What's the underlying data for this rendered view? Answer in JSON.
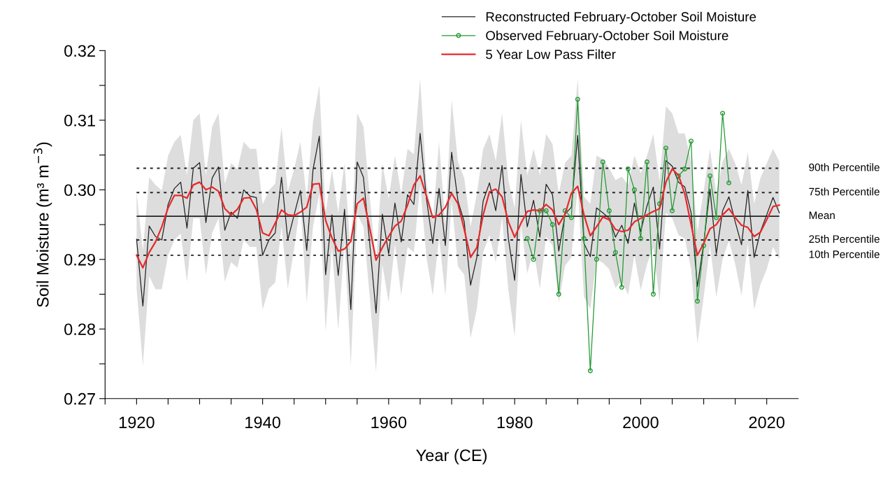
{
  "chart_data": {
    "type": "line",
    "xlabel": "Year (CE)",
    "ylabel": "Soil Moisture (m³ m$^{−3}$)",
    "xlim": [
      1915,
      2025
    ],
    "xticks": [
      {
        "value": 1915,
        "label": null
      },
      1920,
      {
        "value": 1925,
        "label": null
      },
      {
        "value": 1930,
        "label": null
      },
      {
        "value": 1935,
        "label": null
      },
      1940,
      {
        "value": 1945,
        "label": null
      },
      {
        "value": 1950,
        "label": null
      },
      {
        "value": 1955,
        "label": null
      },
      1960,
      {
        "value": 1965,
        "label": null
      },
      {
        "value": 1970,
        "label": null
      },
      {
        "value": 1975,
        "label": null
      },
      1980,
      {
        "value": 1985,
        "label": null
      },
      {
        "value": 1990,
        "label": null
      },
      {
        "value": 1995,
        "label": null
      },
      2000,
      {
        "value": 2005,
        "label": null
      },
      {
        "value": 2010,
        "label": null
      },
      {
        "value": 2015,
        "label": null
      },
      2020
    ],
    "ylim": [
      0.27,
      0.32
    ],
    "yticks": [
      {
        "value": 0.27,
        "label": "0.27"
      },
      {
        "value": 0.275,
        "label": null
      },
      {
        "value": 0.28,
        "label": "0.28"
      },
      {
        "value": 0.285,
        "label": null
      },
      {
        "value": 0.29,
        "label": "0.29"
      },
      {
        "value": 0.295,
        "label": null
      },
      {
        "value": 0.3,
        "label": "0.30"
      },
      {
        "value": 0.305,
        "label": null
      },
      {
        "value": 0.31,
        "label": "0.31"
      },
      {
        "value": 0.315,
        "label": null
      },
      {
        "value": 0.32,
        "label": "0.32"
      }
    ],
    "grid": false,
    "legend": "top right",
    "series": [
      {
        "name": "Reconstructed February-October Soil Moisture",
        "color": "#222222",
        "marker": "none",
        "x": [
          1920,
          1921,
          1922,
          1923,
          1924,
          1925,
          1926,
          1927,
          1928,
          1929,
          1930,
          1931,
          1932,
          1933,
          1934,
          1935,
          1936,
          1937,
          1938,
          1939,
          1940,
          1941,
          1942,
          1943,
          1944,
          1945,
          1946,
          1947,
          1948,
          1949,
          1950,
          1951,
          1952,
          1953,
          1954,
          1955,
          1956,
          1957,
          1958,
          1959,
          1960,
          1961,
          1962,
          1963,
          1964,
          1965,
          1966,
          1967,
          1968,
          1969,
          1970,
          1971,
          1972,
          1973,
          1974,
          1975,
          1976,
          1977,
          1978,
          1979,
          1980,
          1981,
          1982,
          1983,
          1984,
          1985,
          1986,
          1987,
          1988,
          1989,
          1990,
          1991,
          1992,
          1993,
          1994,
          1995,
          1996,
          1997,
          1998,
          1999,
          2000,
          2001,
          2002,
          2003,
          2004,
          2005,
          2006,
          2007,
          2008,
          2009,
          2010,
          2011,
          2012,
          2013,
          2014,
          2015,
          2016,
          2017,
          2018,
          2019,
          2020,
          2021,
          2022
        ],
        "values": [
          0.2929,
          0.2833,
          0.2948,
          0.2933,
          0.2928,
          0.2979,
          0.3002,
          0.3011,
          0.2945,
          0.3031,
          0.3039,
          0.2953,
          0.3017,
          0.3033,
          0.2942,
          0.2968,
          0.2959,
          0.3,
          0.2991,
          0.2989,
          0.2906,
          0.2928,
          0.2938,
          0.3018,
          0.2928,
          0.2964,
          0.2999,
          0.2913,
          0.3029,
          0.3077,
          0.2878,
          0.2964,
          0.2877,
          0.2972,
          0.2828,
          0.304,
          0.3018,
          0.2923,
          0.2823,
          0.2965,
          0.2908,
          0.2981,
          0.2925,
          0.2993,
          0.2979,
          0.3081,
          0.2987,
          0.2923,
          0.3002,
          0.292,
          0.3054,
          0.2984,
          0.2954,
          0.2863,
          0.2903,
          0.2984,
          0.301,
          0.297,
          0.3035,
          0.293,
          0.287,
          0.3022,
          0.2947,
          0.2985,
          0.2932,
          0.3008,
          0.2993,
          0.2912,
          0.2965,
          0.2975,
          0.3078,
          0.2923,
          0.2904,
          0.2974,
          0.2967,
          0.2959,
          0.2932,
          0.2949,
          0.2923,
          0.2981,
          0.294,
          0.2977,
          0.3004,
          0.2915,
          0.3042,
          0.3034,
          0.3011,
          0.3004,
          0.2967,
          0.2861,
          0.2923,
          0.3001,
          0.2908,
          0.297,
          0.299,
          0.2954,
          0.2921,
          0.2999,
          0.2903,
          0.294,
          0.2964,
          0.2989,
          0.2967
        ],
        "upper": [
          0.2996,
          0.2913,
          0.3018,
          0.3007,
          0.2999,
          0.3049,
          0.3069,
          0.3079,
          0.3021,
          0.31,
          0.311,
          0.3021,
          0.3091,
          0.311,
          0.3009,
          0.3038,
          0.303,
          0.3069,
          0.3059,
          0.3059,
          0.2979,
          0.2999,
          0.3009,
          0.309,
          0.2998,
          0.303,
          0.3069,
          0.2987,
          0.3098,
          0.315,
          0.2967,
          0.3029,
          0.2967,
          0.3039,
          0.2903,
          0.311,
          0.3091,
          0.299,
          0.2893,
          0.3038,
          0.2987,
          0.3049,
          0.2994,
          0.3059,
          0.3051,
          0.316,
          0.3011,
          0.2954,
          0.3069,
          0.295,
          0.313,
          0.304,
          0.3017,
          0.2947,
          0.2994,
          0.3059,
          0.308,
          0.3041,
          0.311,
          0.3014,
          0.2974,
          0.31,
          0.3021,
          0.3059,
          0.3021,
          0.308,
          0.3066,
          0.2994,
          0.3039,
          0.3049,
          0.316,
          0.299,
          0.298,
          0.3049,
          0.3044,
          0.3031,
          0.3014,
          0.3019,
          0.3007,
          0.3049,
          0.3024,
          0.3049,
          0.308,
          0.3012,
          0.312,
          0.311,
          0.3081,
          0.3081,
          0.3041,
          0.294,
          0.2999,
          0.3059,
          0.2994,
          0.3041,
          0.3059,
          0.3038,
          0.3007,
          0.3054,
          0.298,
          0.3017,
          0.3038,
          0.3059,
          0.3041
        ],
        "lower": [
          0.2858,
          0.2747,
          0.2876,
          0.2857,
          0.2857,
          0.2906,
          0.2928,
          0.2937,
          0.2868,
          0.2959,
          0.2959,
          0.2878,
          0.2938,
          0.2959,
          0.2868,
          0.2896,
          0.2888,
          0.2928,
          0.2918,
          0.2918,
          0.2828,
          0.2858,
          0.2867,
          0.2947,
          0.2858,
          0.2915,
          0.298,
          0.2838,
          0.2947,
          0.2994,
          0.2797,
          0.2917,
          0.2799,
          0.2927,
          0.2747,
          0.2965,
          0.2947,
          0.2846,
          0.2738,
          0.2893,
          0.2838,
          0.2922,
          0.2848,
          0.2918,
          0.291,
          0.3007,
          0.2903,
          0.2848,
          0.2932,
          0.2848,
          0.2984,
          0.289,
          0.2878,
          0.2787,
          0.2829,
          0.291,
          0.2935,
          0.2896,
          0.296,
          0.2856,
          0.2789,
          0.295,
          0.288,
          0.2913,
          0.2858,
          0.2933,
          0.292,
          0.2838,
          0.2891,
          0.2903,
          0.3004,
          0.2846,
          0.2829,
          0.29,
          0.2895,
          0.2886,
          0.2859,
          0.287,
          0.2849,
          0.2906,
          0.2856,
          0.2893,
          0.2917,
          0.2839,
          0.2967,
          0.2959,
          0.2935,
          0.293,
          0.2886,
          0.2779,
          0.2846,
          0.292,
          0.2846,
          0.29,
          0.2927,
          0.2893,
          0.2848,
          0.2923,
          0.2828,
          0.2864,
          0.2886,
          0.2918,
          0.29
        ]
      },
      {
        "name": "Observed February-October Soil Moisture",
        "color": "#229933",
        "marker": "circle",
        "x": [
          1982,
          1983,
          1984,
          1985,
          1986,
          1987,
          1988,
          1989,
          1990,
          1991,
          1992,
          1993,
          1994,
          1995,
          1996,
          1997,
          1998,
          1999,
          2000,
          2001,
          2002,
          2003,
          2004,
          2005,
          2006,
          2007,
          2008,
          2009,
          2010,
          2011,
          2012,
          2013,
          2014
        ],
        "values": [
          0.293,
          0.29,
          0.297,
          0.297,
          0.295,
          0.285,
          0.297,
          0.296,
          0.313,
          0.293,
          0.274,
          0.29,
          0.304,
          0.297,
          0.291,
          0.286,
          0.303,
          0.3,
          0.293,
          0.304,
          0.285,
          0.298,
          0.306,
          0.297,
          0.302,
          0.303,
          0.307,
          0.284,
          0.292,
          0.302,
          0.296,
          0.311,
          0.301
        ]
      },
      {
        "name": "5 Year Low Pass Filter",
        "color": "#e8292b",
        "marker": "none",
        "x": [
          1920,
          1921,
          1922,
          1923,
          1924,
          1925,
          1926,
          1927,
          1928,
          1929,
          1930,
          1931,
          1932,
          1933,
          1934,
          1935,
          1936,
          1937,
          1938,
          1939,
          1940,
          1941,
          1942,
          1943,
          1944,
          1945,
          1946,
          1947,
          1948,
          1949,
          1950,
          1951,
          1952,
          1953,
          1954,
          1955,
          1956,
          1957,
          1958,
          1959,
          1960,
          1961,
          1962,
          1963,
          1964,
          1965,
          1966,
          1967,
          1968,
          1969,
          1970,
          1971,
          1972,
          1973,
          1974,
          1975,
          1976,
          1977,
          1978,
          1979,
          1980,
          1981,
          1982,
          1983,
          1984,
          1985,
          1986,
          1987,
          1988,
          1989,
          1990,
          1991,
          1992,
          1993,
          1994,
          1995,
          1996,
          1997,
          1998,
          1999,
          2000,
          2001,
          2002,
          2003,
          2004,
          2005,
          2006,
          2007,
          2008,
          2009,
          2010,
          2011,
          2012,
          2013,
          2014,
          2015,
          2016,
          2017,
          2018,
          2019,
          2020,
          2021,
          2022
        ],
        "values": [
          0.2906,
          0.2888,
          0.291,
          0.2925,
          0.2947,
          0.2974,
          0.2992,
          0.2992,
          0.2988,
          0.3007,
          0.3011,
          0.3,
          0.3004,
          0.2998,
          0.2973,
          0.2964,
          0.2972,
          0.2988,
          0.2989,
          0.2972,
          0.2938,
          0.2934,
          0.2952,
          0.2971,
          0.2964,
          0.2963,
          0.2968,
          0.2975,
          0.3008,
          0.3009,
          0.2956,
          0.2931,
          0.2912,
          0.2915,
          0.2926,
          0.298,
          0.2988,
          0.2945,
          0.2899,
          0.2917,
          0.2933,
          0.2948,
          0.2955,
          0.2978,
          0.3007,
          0.302,
          0.2991,
          0.296,
          0.2964,
          0.2975,
          0.2995,
          0.298,
          0.2943,
          0.2903,
          0.2917,
          0.2964,
          0.2997,
          0.3001,
          0.299,
          0.2954,
          0.2932,
          0.2952,
          0.2969,
          0.2971,
          0.297,
          0.2979,
          0.2971,
          0.295,
          0.2965,
          0.2995,
          0.3005,
          0.2964,
          0.2934,
          0.2947,
          0.2961,
          0.2957,
          0.2943,
          0.294,
          0.2942,
          0.2954,
          0.2959,
          0.2964,
          0.2969,
          0.2973,
          0.3011,
          0.303,
          0.3021,
          0.2994,
          0.295,
          0.2906,
          0.2923,
          0.2944,
          0.295,
          0.2964,
          0.2973,
          0.296,
          0.2949,
          0.2946,
          0.2933,
          0.2939,
          0.2957,
          0.2976,
          0.2978
        ]
      }
    ],
    "ref_lines": [
      {
        "axis": "y",
        "value": 0.3031,
        "label": "90th Percentile",
        "line_style": "dotted",
        "color": "#222222"
      },
      {
        "axis": "y",
        "value": 0.2996,
        "label": "75th Percentile",
        "line_style": "dotted",
        "color": "#222222"
      },
      {
        "axis": "y",
        "value": 0.2962,
        "label": "Mean",
        "line_style": "solid",
        "color": "#222222"
      },
      {
        "axis": "y",
        "value": 0.2928,
        "label": "25th Percentile",
        "line_style": "dotted",
        "color": "#222222"
      },
      {
        "axis": "y",
        "value": 0.2906,
        "label": "10th Percentile",
        "line_style": "dotted",
        "color": "#222222"
      }
    ]
  }
}
